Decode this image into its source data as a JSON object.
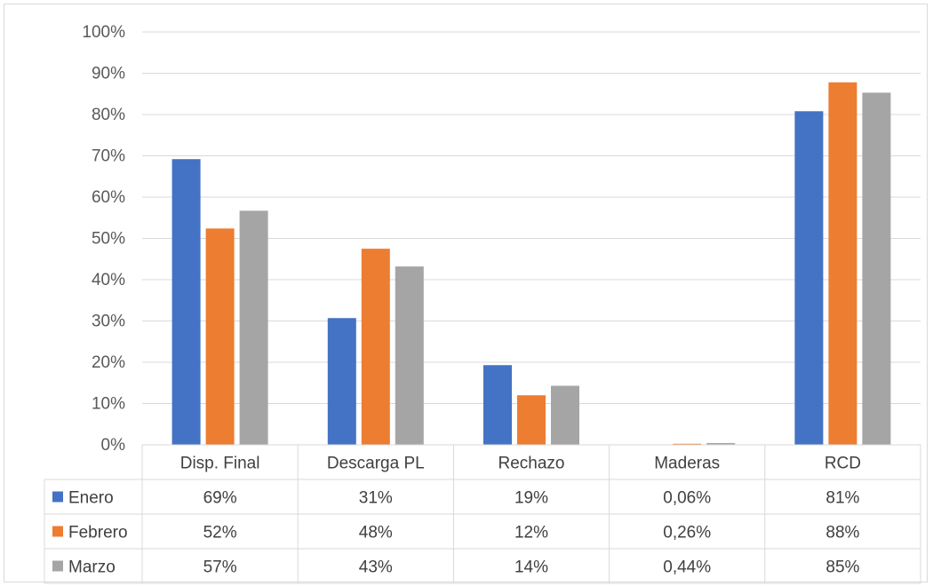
{
  "chart_data": {
    "type": "bar",
    "title": "",
    "xlabel": "",
    "ylabel": "",
    "ylim": [
      0,
      1
    ],
    "y_ticks": [
      "0%",
      "10%",
      "20%",
      "30%",
      "40%",
      "50%",
      "60%",
      "70%",
      "80%",
      "90%",
      "100%"
    ],
    "grid": true,
    "legend": "data-table",
    "categories": [
      "Disp. Final",
      "Descarga PL",
      "Rechazo",
      "Maderas",
      "RCD"
    ],
    "series": [
      {
        "name": "Enero",
        "color": "#4472c4",
        "values": [
          0.692,
          0.307,
          0.193,
          0.0006,
          0.808
        ],
        "labels": [
          "69%",
          "31%",
          "19%",
          "0,06%",
          "81%"
        ]
      },
      {
        "name": "Febrero",
        "color": "#ed7d31",
        "values": [
          0.524,
          0.475,
          0.12,
          0.0026,
          0.878
        ],
        "labels": [
          "52%",
          "48%",
          "12%",
          "0,26%",
          "88%"
        ]
      },
      {
        "name": "Marzo",
        "color": "#a5a5a5",
        "values": [
          0.567,
          0.432,
          0.143,
          0.0044,
          0.853
        ],
        "labels": [
          "57%",
          "43%",
          "14%",
          "0,44%",
          "85%"
        ]
      }
    ]
  }
}
